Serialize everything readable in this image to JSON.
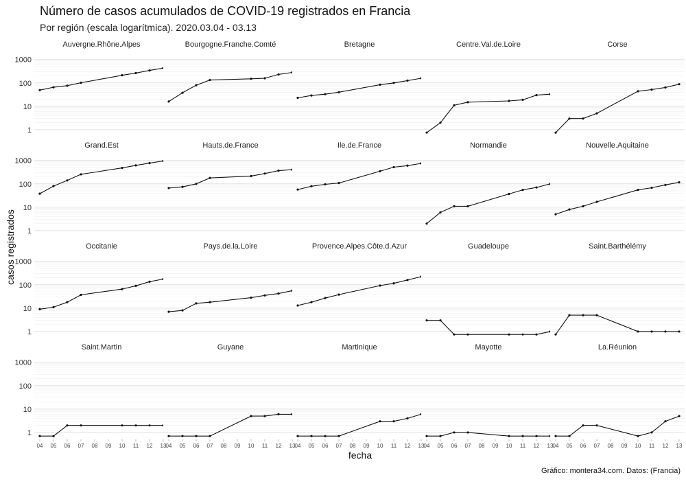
{
  "chart_data": {
    "type": "line",
    "title": "Número de casos acumulados de COVID-19 registrados en Francia",
    "subtitle": "Por región (escala logarítmica). 2020.03.04 - 03.13",
    "xlabel": "fecha",
    "ylabel": "casos registrados",
    "caption": "Gráfico: montera34.com. Datos:  (Francia)",
    "y_scale": "log10",
    "ylim": [
      0.62,
      1200
    ],
    "y_ticks": [
      1,
      10,
      100,
      1000
    ],
    "y_tick_labels": [
      "1",
      "10",
      "100",
      "1000"
    ],
    "x_ticks": [
      4,
      5,
      6,
      7,
      8,
      9,
      10,
      11,
      12,
      13
    ],
    "x_tick_labels": [
      "04",
      "05",
      "06",
      "07",
      "08",
      "09",
      "10",
      "11",
      "12",
      "13"
    ],
    "x_range": [
      4,
      13
    ],
    "facet_columns": 5,
    "grid": true,
    "panels": [
      {
        "name": "Auvergne.Rhône.Alpes",
        "x": [
          4,
          5,
          6,
          7,
          10,
          11,
          12,
          13
        ],
        "y": [
          49,
          65,
          76,
          102,
          212,
          265,
          341,
          431
        ]
      },
      {
        "name": "Bourgogne.Franche.Comté",
        "x": [
          4,
          5,
          6,
          7,
          10,
          11,
          12,
          13
        ],
        "y": [
          16,
          38,
          80,
          133,
          150,
          158,
          230,
          280
        ]
      },
      {
        "name": "Bretagne",
        "x": [
          4,
          5,
          6,
          7,
          10,
          11,
          12,
          13
        ],
        "y": [
          23,
          29,
          33,
          40,
          84,
          100,
          126,
          158
        ]
      },
      {
        "name": "Centre.Val.de.Loire",
        "x": [
          4,
          5,
          6,
          7,
          10,
          11,
          12,
          13
        ],
        "y": [
          0.75,
          2,
          11,
          15,
          17,
          19,
          30,
          33
        ]
      },
      {
        "name": "Corse",
        "x": [
          4,
          5,
          6,
          7,
          10,
          11,
          12,
          13
        ],
        "y": [
          0.75,
          3,
          3,
          5,
          44,
          52,
          64,
          88
        ]
      },
      {
        "name": "Grand.Est",
        "x": [
          4,
          5,
          6,
          7,
          10,
          11,
          12,
          13
        ],
        "y": [
          38,
          80,
          140,
          255,
          480,
          615,
          770,
          945
        ]
      },
      {
        "name": "Hauts.de.France",
        "x": [
          4,
          5,
          6,
          7,
          10,
          11,
          12,
          13
        ],
        "y": [
          66,
          74,
          100,
          178,
          215,
          275,
          365,
          405
        ]
      },
      {
        "name": "Ile.de.France",
        "x": [
          4,
          5,
          6,
          7,
          10,
          11,
          12,
          13
        ],
        "y": [
          57,
          79,
          95,
          108,
          345,
          515,
          600,
          750
        ]
      },
      {
        "name": "Normandie",
        "x": [
          4,
          5,
          6,
          7,
          10,
          11,
          12,
          13
        ],
        "y": [
          2,
          6,
          11,
          11,
          37,
          55,
          70,
          100
        ]
      },
      {
        "name": "Nouvelle.Aquitaine",
        "x": [
          4,
          5,
          6,
          7,
          10,
          11,
          12,
          13
        ],
        "y": [
          5,
          8,
          11,
          17,
          55,
          68,
          90,
          116
        ]
      },
      {
        "name": "Occitanie",
        "x": [
          4,
          5,
          6,
          7,
          10,
          11,
          12,
          13
        ],
        "y": [
          9,
          11,
          18,
          37,
          65,
          90,
          135,
          175
        ]
      },
      {
        "name": "Pays.de.la.Loire",
        "x": [
          4,
          5,
          6,
          7,
          10,
          11,
          12,
          13
        ],
        "y": [
          7,
          8,
          16,
          18,
          28,
          35,
          42,
          56
        ]
      },
      {
        "name": "Provence.Alpes.Côte.d.Azur",
        "x": [
          4,
          5,
          6,
          7,
          10,
          11,
          12,
          13
        ],
        "y": [
          13,
          18,
          27,
          38,
          92,
          115,
          160,
          222
        ]
      },
      {
        "name": "Guadeloupe",
        "x": [
          4,
          5,
          6,
          7,
          10,
          11,
          12,
          13
        ],
        "y": [
          3,
          3,
          0.75,
          0.75,
          0.75,
          0.75,
          0.75,
          1
        ]
      },
      {
        "name": "Saint.Barthélémy",
        "x": [
          4,
          5,
          6,
          7,
          10,
          11,
          12,
          13
        ],
        "y": [
          0.75,
          5,
          5,
          5,
          1,
          1,
          1,
          1
        ]
      },
      {
        "name": "Saint.Martin",
        "x": [
          4,
          5,
          6,
          7,
          10,
          11,
          12,
          13
        ],
        "y": [
          0.7,
          0.7,
          2,
          2,
          2,
          2,
          2,
          2
        ]
      },
      {
        "name": "Guyane",
        "x": [
          4,
          5,
          6,
          7,
          10,
          11,
          12,
          13
        ],
        "y": [
          0.7,
          0.7,
          0.7,
          0.7,
          5,
          5,
          6,
          6
        ]
      },
      {
        "name": "Martinique",
        "x": [
          4,
          5,
          6,
          7,
          10,
          11,
          12,
          13
        ],
        "y": [
          0.7,
          0.7,
          0.7,
          0.7,
          3,
          3,
          4,
          6
        ]
      },
      {
        "name": "Mayotte",
        "x": [
          4,
          5,
          6,
          7,
          10,
          11,
          12,
          13
        ],
        "y": [
          0.7,
          0.7,
          1,
          1,
          0.7,
          0.7,
          0.7,
          0.7
        ]
      },
      {
        "name": "La.Réunion",
        "x": [
          4,
          5,
          6,
          7,
          10,
          11,
          12,
          13
        ],
        "y": [
          0.7,
          0.7,
          2,
          2,
          0.7,
          1,
          3,
          5
        ]
      }
    ]
  }
}
